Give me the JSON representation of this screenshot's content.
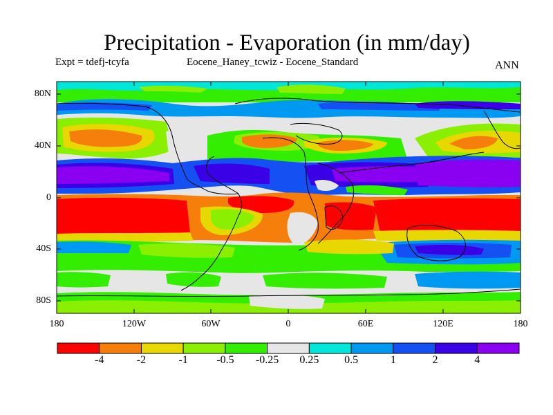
{
  "title": "Precipitation - Evaporation (in mm/day)",
  "subtitle_left": "Expt = tdefj-tcyfa",
  "subtitle_center": "Eocene_Haney_tcwiz - Eocene_Standard",
  "subtitle_right": "ANN",
  "lat_labels": [
    "80N",
    "40N",
    "0",
    "40S",
    "80S"
  ],
  "lon_labels": [
    "180",
    "120W",
    "60W",
    "0",
    "60E",
    "120E",
    "180"
  ],
  "colorbar": {
    "colors": [
      "#ff0000",
      "#f57f0a",
      "#e6d800",
      "#8aef00",
      "#33ee00",
      "#e6e6e6",
      "#00e6d8",
      "#0099f2",
      "#1450f2",
      "#3a00e6",
      "#8a00f0"
    ],
    "labels": [
      "-4",
      "-2",
      "-1",
      "-0.5",
      "-0.25",
      "0.25",
      "0.5",
      "1",
      "2",
      "4"
    ]
  },
  "map_data": {
    "lat_range": [
      -90,
      90
    ],
    "lon_range": [
      -180,
      180
    ],
    "note_levels": "11 discrete color bins of P-E difference"
  }
}
